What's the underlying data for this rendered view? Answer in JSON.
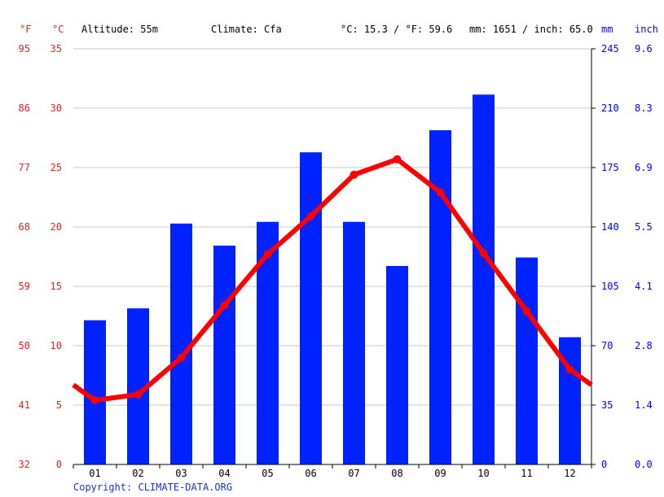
{
  "header": {
    "unit_f": "°F",
    "unit_c": "°C",
    "altitude": "Altitude: 55m",
    "climate": "Climate: Cfa",
    "avg_temp": "°C: 15.3 / °F: 59.6",
    "precip_total": "mm: 1651 / inch: 65.0",
    "unit_mm": "mm",
    "unit_inch": "inch"
  },
  "axes": {
    "fahrenheit_ticks": [
      "32",
      "41",
      "50",
      "59",
      "68",
      "77",
      "86",
      "95"
    ],
    "celsius_ticks": [
      "0",
      "5",
      "10",
      "15",
      "20",
      "25",
      "30",
      "35"
    ],
    "mm_ticks": [
      "0",
      "35",
      "70",
      "105",
      "140",
      "175",
      "210",
      "245"
    ],
    "inch_ticks": [
      "0.0",
      "1.4",
      "2.8",
      "4.1",
      "5.5",
      "6.9",
      "8.3",
      "9.6"
    ]
  },
  "colors": {
    "temperature": "#ff0000",
    "precipitation": "#0022ff",
    "temp_axis_text": "#e8211e",
    "precip_axis_text": "#0000ff",
    "grid": "#c8c8c8"
  },
  "footer": {
    "copyright": "Copyright: CLIMATE-DATA.ORG"
  },
  "chart_data": {
    "type": "bar",
    "categories": [
      "01",
      "02",
      "03",
      "04",
      "05",
      "06",
      "07",
      "08",
      "09",
      "10",
      "11",
      "12"
    ],
    "series": [
      {
        "type": "bar",
        "axis": "right",
        "values": [
          85,
          92,
          142,
          129,
          143,
          184,
          143,
          117,
          197,
          218,
          122,
          75
        ]
      },
      {
        "type": "line",
        "axis": "left",
        "values": [
          5.4,
          5.9,
          9.0,
          13.4,
          17.7,
          20.9,
          24.4,
          25.7,
          22.9,
          17.8,
          12.9,
          8.0
        ]
      }
    ],
    "temperature_ylim": [
      0,
      35
    ],
    "precipitation_ylim": [
      0,
      245
    ],
    "grid": true
  }
}
